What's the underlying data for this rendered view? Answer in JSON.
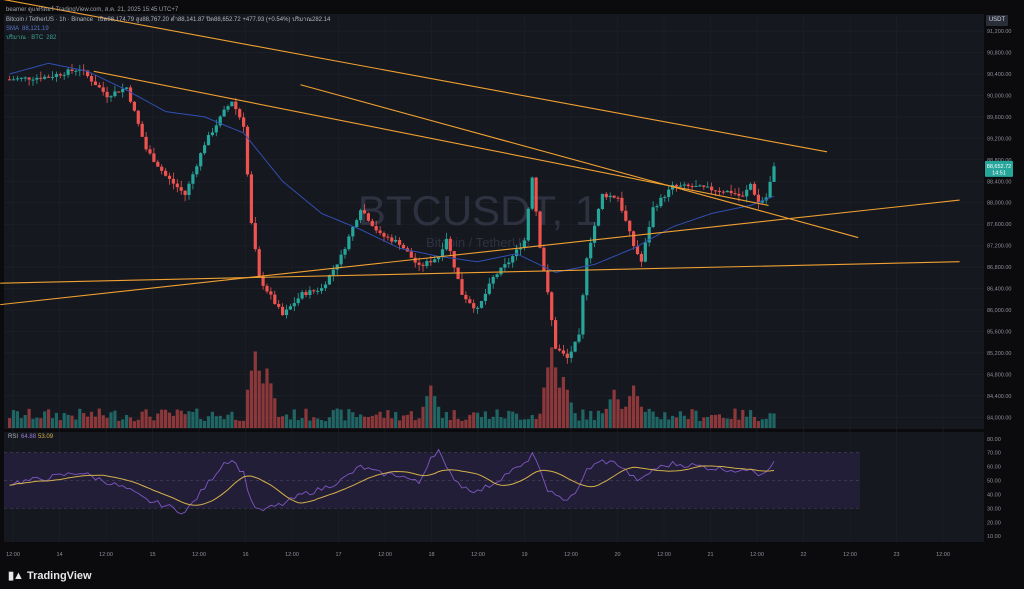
{
  "header": "beamer ดูแฟร์ดอร์ TradingView.com, ส.ค. 21, 2025 15:45 UTC+7",
  "legend": {
    "symbol": "Bitcoin / TetherUS · 1h · Binance",
    "ohlc": "เปิด88,174.79 สูง88,767.20 ต่ำ88,141.87 ปิด88,652.72 +477.93 (+0.54%) ปริมาณ282.14",
    "sma_label": "SMA",
    "sma_value": "88,121.19",
    "vol_label": "ปริมาณ · BTC",
    "vol_value": "282"
  },
  "currency": "USDT",
  "watermark": {
    "symbol": "BTCUSDT, 1",
    "name": "Bitcoin / TetherUS"
  },
  "price_tag": {
    "price": "88,652.72",
    "time": "14:51",
    "color": "#26a69a"
  },
  "rsi_legend": {
    "label": "RSI",
    "rsi": "64.88",
    "ma": "53.09"
  },
  "brand": "TradingView",
  "colors": {
    "up": "#26a69a",
    "down": "#ef5350",
    "sma": "#2f4fb0",
    "trend": "#f0a030",
    "rsi": "#7e57c2",
    "rsi_ma": "#d4b04a"
  },
  "chart_data": {
    "type": "candlestick",
    "price_axis": [
      "91,200.00",
      "90,800.00",
      "90,400.00",
      "90,000.00",
      "89,600.00",
      "89,200.00",
      "88,800.00",
      "88,400.00",
      "88,000.00",
      "87,600.00",
      "87,200.00",
      "86,800.00",
      "86,400.00",
      "86,000.00",
      "85,600.00",
      "85,200.00",
      "84,800.00",
      "84,400.00",
      "84,000.00"
    ],
    "ylim": [
      83800,
      91500
    ],
    "rsi_axis": [
      "80.00",
      "70.00",
      "60.00",
      "50.00",
      "40.00",
      "30.00",
      "20.00",
      "10.00"
    ],
    "rsi_ylim": [
      8,
      82
    ],
    "time_axis": [
      "12:00",
      "14",
      "12:00",
      "15",
      "12:00",
      "16",
      "12:00",
      "17",
      "12:00",
      "18",
      "12:00",
      "19",
      "12:00",
      "20",
      "12:00",
      "21",
      "12:00",
      "22",
      "12:00",
      "23",
      "12:00"
    ],
    "anchors": [
      [
        0,
        90300
      ],
      [
        10,
        90350
      ],
      [
        18,
        90500
      ],
      [
        25,
        90000
      ],
      [
        30,
        90150
      ],
      [
        35,
        89000
      ],
      [
        40,
        88500
      ],
      [
        45,
        88150
      ],
      [
        50,
        89100
      ],
      [
        55,
        89700
      ],
      [
        57,
        89900
      ],
      [
        60,
        89450
      ],
      [
        62,
        87600
      ],
      [
        64,
        86600
      ],
      [
        70,
        85900
      ],
      [
        75,
        86300
      ],
      [
        80,
        86400
      ],
      [
        85,
        87000
      ],
      [
        90,
        87900
      ],
      [
        95,
        87400
      ],
      [
        100,
        87250
      ],
      [
        105,
        86800
      ],
      [
        110,
        87000
      ],
      [
        112,
        87350
      ],
      [
        116,
        86300
      ],
      [
        120,
        86000
      ],
      [
        124,
        86600
      ],
      [
        128,
        86900
      ],
      [
        132,
        87300
      ],
      [
        134,
        88500
      ],
      [
        136,
        87200
      ],
      [
        138,
        86300
      ],
      [
        140,
        85300
      ],
      [
        143,
        85100
      ],
      [
        146,
        85500
      ],
      [
        148,
        87000
      ],
      [
        152,
        88150
      ],
      [
        156,
        88100
      ],
      [
        160,
        87200
      ],
      [
        162,
        86900
      ],
      [
        165,
        87900
      ],
      [
        170,
        88300
      ],
      [
        175,
        88300
      ],
      [
        180,
        88250
      ],
      [
        185,
        88200
      ],
      [
        188,
        88100
      ],
      [
        190,
        88350
      ],
      [
        192,
        88000
      ],
      [
        194,
        88100
      ],
      [
        196,
        88650
      ]
    ],
    "sma_anchors": [
      [
        0,
        90400
      ],
      [
        10,
        90600
      ],
      [
        20,
        90450
      ],
      [
        30,
        90100
      ],
      [
        40,
        89700
      ],
      [
        50,
        89600
      ],
      [
        60,
        89300
      ],
      [
        70,
        88400
      ],
      [
        80,
        87800
      ],
      [
        90,
        87500
      ],
      [
        100,
        87150
      ],
      [
        110,
        87000
      ],
      [
        120,
        86900
      ],
      [
        130,
        87050
      ],
      [
        140,
        86700
      ],
      [
        150,
        86850
      ],
      [
        160,
        87150
      ],
      [
        170,
        87550
      ],
      [
        180,
        87800
      ],
      [
        190,
        87950
      ],
      [
        196,
        88120
      ]
    ],
    "volume_spikes": [
      [
        63,
        0.9
      ],
      [
        66,
        0.7
      ],
      [
        108,
        0.5
      ],
      [
        139,
        0.95
      ],
      [
        142,
        0.6
      ],
      [
        155,
        0.45
      ],
      [
        160,
        0.5
      ]
    ],
    "trendlines": [
      [
        -2,
        91800,
        210,
        88950
      ],
      [
        75,
        90200,
        218,
        87350
      ],
      [
        22,
        90450,
        195,
        87950
      ],
      [
        -2,
        86100,
        244,
        88050
      ],
      [
        -2,
        86500,
        244,
        86900
      ]
    ],
    "rsi_anchors": [
      [
        0,
        48
      ],
      [
        10,
        52
      ],
      [
        18,
        56
      ],
      [
        25,
        49
      ],
      [
        30,
        44
      ],
      [
        35,
        36
      ],
      [
        40,
        32
      ],
      [
        45,
        27
      ],
      [
        50,
        45
      ],
      [
        55,
        63
      ],
      [
        57,
        65
      ],
      [
        60,
        55
      ],
      [
        62,
        35
      ],
      [
        64,
        28
      ],
      [
        70,
        33
      ],
      [
        75,
        40
      ],
      [
        80,
        44
      ],
      [
        85,
        50
      ],
      [
        90,
        60
      ],
      [
        95,
        55
      ],
      [
        100,
        54
      ],
      [
        105,
        48
      ],
      [
        108,
        67
      ],
      [
        110,
        72
      ],
      [
        112,
        58
      ],
      [
        116,
        46
      ],
      [
        120,
        42
      ],
      [
        124,
        48
      ],
      [
        128,
        56
      ],
      [
        132,
        61
      ],
      [
        134,
        70
      ],
      [
        136,
        56
      ],
      [
        138,
        44
      ],
      [
        140,
        38
      ],
      [
        143,
        37
      ],
      [
        146,
        44
      ],
      [
        148,
        58
      ],
      [
        152,
        64
      ],
      [
        156,
        62
      ],
      [
        160,
        52
      ],
      [
        162,
        50
      ],
      [
        165,
        58
      ],
      [
        170,
        62
      ],
      [
        175,
        61
      ],
      [
        180,
        59
      ],
      [
        185,
        58
      ],
      [
        188,
        56
      ],
      [
        190,
        60
      ],
      [
        192,
        55
      ],
      [
        194,
        57
      ],
      [
        196,
        65
      ]
    ],
    "n_bars": 197
  }
}
